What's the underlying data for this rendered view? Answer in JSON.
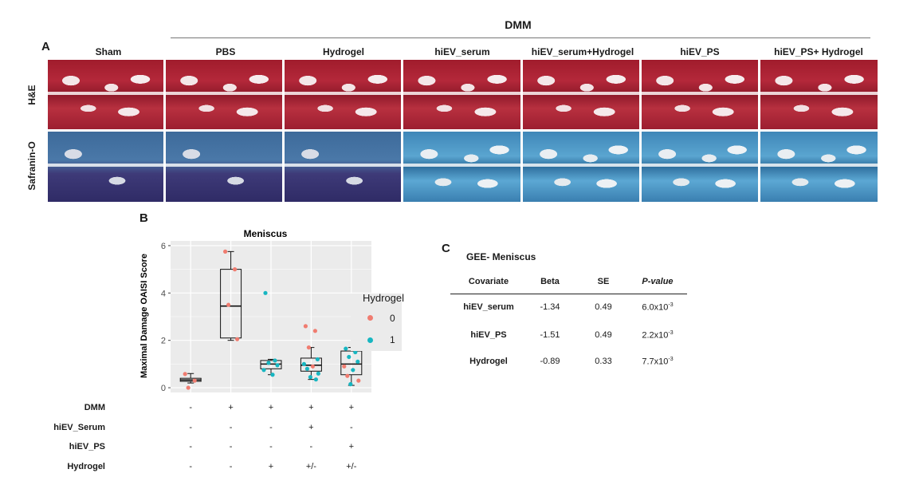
{
  "panel_a": {
    "letter": "A",
    "group_label": "DMM",
    "columns": [
      "Sham",
      "PBS",
      "Hydrogel",
      "hiEV_serum",
      "hiEV_serum+Hydrogel",
      "hiEV_PS",
      "hiEV_PS+ Hydrogel"
    ],
    "rows": [
      "H&E",
      "Safranin-O"
    ]
  },
  "panel_b": {
    "letter": "B",
    "chart_data": {
      "type": "box",
      "title": "Meniscus",
      "ylabel": "Maximal Damage OAISI Score",
      "ylim": [
        0,
        6
      ],
      "yticks": [
        "0",
        "2",
        "4",
        "6"
      ],
      "legend": {
        "title": "Hydrogel",
        "entries": [
          "0",
          "1"
        ],
        "colors": [
          "#f07c70",
          "#17b6c1"
        ]
      },
      "groups": [
        {
          "q1": 0.27,
          "median": 0.33,
          "q3": 0.4,
          "whisker_low": 0.2,
          "whisker_high": 0.6,
          "points": [
            {
              "y": 0.58,
              "hydrogel": 0
            },
            {
              "y": 0.3,
              "hydrogel": 0
            },
            {
              "y": 0.0,
              "hydrogel": 0
            }
          ]
        },
        {
          "q1": 2.1,
          "median": 3.45,
          "q3": 5.0,
          "whisker_low": 2.0,
          "whisker_high": 5.75,
          "points": [
            {
              "y": 5.75,
              "hydrogel": 0
            },
            {
              "y": 5.0,
              "hydrogel": 0
            },
            {
              "y": 3.5,
              "hydrogel": 0
            },
            {
              "y": 2.05,
              "hydrogel": 0
            }
          ]
        },
        {
          "q1": 0.8,
          "median": 1.0,
          "q3": 1.15,
          "whisker_low": 0.55,
          "whisker_high": 1.2,
          "points": [
            {
              "y": 4.0,
              "hydrogel": 1
            },
            {
              "y": 1.15,
              "hydrogel": 1
            },
            {
              "y": 1.05,
              "hydrogel": 1
            },
            {
              "y": 0.95,
              "hydrogel": 1
            },
            {
              "y": 0.75,
              "hydrogel": 1
            },
            {
              "y": 0.55,
              "hydrogel": 1
            }
          ]
        },
        {
          "q1": 0.7,
          "median": 0.95,
          "q3": 1.25,
          "whisker_low": 0.35,
          "whisker_high": 1.7,
          "points": [
            {
              "y": 2.6,
              "hydrogel": 0
            },
            {
              "y": 2.4,
              "hydrogel": 0
            },
            {
              "y": 1.7,
              "hydrogel": 0
            },
            {
              "y": 1.2,
              "hydrogel": 1
            },
            {
              "y": 1.0,
              "hydrogel": 1
            },
            {
              "y": 0.9,
              "hydrogel": 0
            },
            {
              "y": 0.8,
              "hydrogel": 1
            },
            {
              "y": 0.6,
              "hydrogel": 1
            },
            {
              "y": 0.45,
              "hydrogel": 1
            },
            {
              "y": 0.35,
              "hydrogel": 1
            }
          ]
        },
        {
          "q1": 0.55,
          "median": 1.0,
          "q3": 1.55,
          "whisker_low": 0.1,
          "whisker_high": 1.7,
          "points": [
            {
              "y": 1.65,
              "hydrogel": 1
            },
            {
              "y": 1.5,
              "hydrogel": 1
            },
            {
              "y": 1.3,
              "hydrogel": 1
            },
            {
              "y": 1.1,
              "hydrogel": 1
            },
            {
              "y": 0.9,
              "hydrogel": 0
            },
            {
              "y": 0.75,
              "hydrogel": 1
            },
            {
              "y": 0.5,
              "hydrogel": 0
            },
            {
              "y": 0.3,
              "hydrogel": 0
            },
            {
              "y": 0.15,
              "hydrogel": 1
            }
          ]
        }
      ]
    },
    "conditions": [
      {
        "label": "DMM",
        "signs": [
          "-",
          "+",
          "+",
          "+",
          "+"
        ]
      },
      {
        "label": "hiEV_Serum",
        "signs": [
          "-",
          "-",
          "-",
          "+",
          "-"
        ]
      },
      {
        "label": "hiEV_PS",
        "signs": [
          "-",
          "-",
          "-",
          "-",
          "+"
        ]
      },
      {
        "label": "Hydrogel",
        "signs": [
          "-",
          "-",
          "+",
          "+/-",
          "+/-"
        ]
      }
    ]
  },
  "panel_c": {
    "letter": "C",
    "title": "GEE- Meniscus",
    "headers": [
      "Covariate",
      "Beta",
      "SE",
      "P-value"
    ],
    "rows": [
      {
        "covariate": "hiEV_serum",
        "beta": "-1.34",
        "se": "0.49",
        "p_mant": "6.0x10",
        "p_exp": "-3"
      },
      {
        "covariate": "hiEV_PS",
        "beta": "-1.51",
        "se": "0.49",
        "p_mant": "2.2x10",
        "p_exp": "-3"
      },
      {
        "covariate": "Hydrogel",
        "beta": "-0.89",
        "se": "0.33",
        "p_mant": "7.7x10",
        "p_exp": "-3"
      }
    ]
  }
}
